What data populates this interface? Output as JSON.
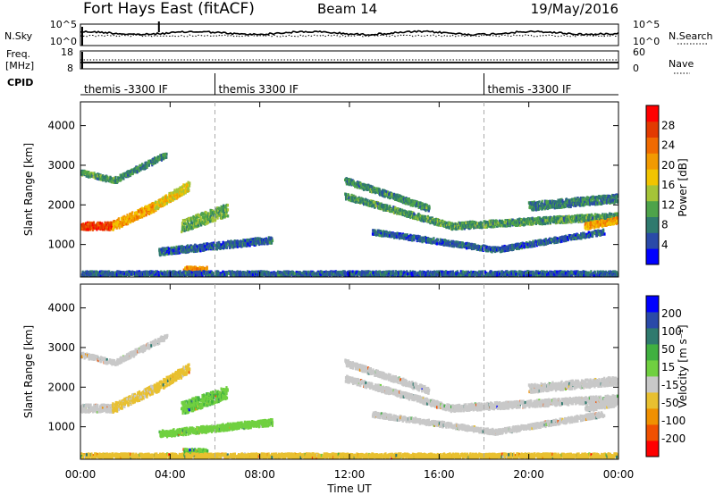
{
  "header": {
    "radar": "Fort Hays East (fitACF)",
    "beam": "Beam 14",
    "date": "19/May/2016"
  },
  "nsky_panel": {
    "left_label": "N.Sky",
    "right_label": "N.Search",
    "left_ticks": [
      "10^5",
      "10^0"
    ],
    "right_ticks": [
      "10^5",
      "10^0"
    ]
  },
  "freq_panel": {
    "left_label_top": "Freq.",
    "left_label_bottom": "[MHz]",
    "right_label": "Nave",
    "left_ticks": [
      "18",
      "8"
    ],
    "right_ticks": [
      "60",
      "0"
    ]
  },
  "cpid": {
    "label": "CPID",
    "segments": [
      {
        "label": "themis -3300 IF",
        "start_hour": 0
      },
      {
        "label": "themis 3300 IF",
        "start_hour": 6
      },
      {
        "label": "themis -3300 IF",
        "start_hour": 18
      }
    ]
  },
  "time_axis": {
    "label": "Time UT",
    "ticks": [
      "00:00",
      "04:00",
      "08:00",
      "12:00",
      "16:00",
      "20:00",
      "00:00"
    ]
  },
  "range_axis": {
    "label": "Slant Range [km]",
    "ticks": [
      "1000",
      "2000",
      "3000",
      "4000"
    ]
  },
  "colors": {
    "power_scale": [
      "#0000ff",
      "#2a4aa8",
      "#2f7a6e",
      "#4ea34a",
      "#a5c438",
      "#f2c400",
      "#f29a00",
      "#f06a00",
      "#e23a00",
      "#ff0000"
    ],
    "velocity_scale": [
      "#ff0000",
      "#f05000",
      "#f09000",
      "#e8c030",
      "#c8c8c8",
      "#70d040",
      "#40b040",
      "#2f7a6e",
      "#2a4aa8",
      "#0000ff"
    ]
  },
  "power_colorbar": {
    "label": "Power [dB]",
    "ticks": [
      "28",
      "24",
      "20",
      "16",
      "12",
      "8",
      "4"
    ]
  },
  "velocity_colorbar": {
    "label": "Velocity [m s⁻¹]",
    "ticks": [
      "200",
      "100",
      "50",
      "15",
      "-15",
      "-50",
      "-100",
      "-200"
    ]
  },
  "chart_data": {
    "type": "heatmap",
    "x_range_hours": [
      0,
      24
    ],
    "y_range_km": [
      180,
      4600
    ],
    "dashed_time_markers_hours": [
      6,
      18
    ],
    "panels": [
      {
        "name": "power",
        "unit": "dB",
        "range": [
          0,
          32
        ],
        "echo_regions": [
          {
            "t_start": 0.0,
            "t_end": 1.4,
            "r_start": 1500,
            "r_end": 1500,
            "width_km": 180,
            "value": 27
          },
          {
            "t_start": 1.4,
            "t_end": 3.3,
            "r_start": 1500,
            "r_end": 2000,
            "width_km": 220,
            "value": 20
          },
          {
            "t_start": 3.3,
            "t_end": 4.8,
            "r_start": 2000,
            "r_end": 2500,
            "width_km": 220,
            "value": 17
          },
          {
            "t_start": 0.0,
            "t_end": 1.5,
            "r_start": 2850,
            "r_end": 2650,
            "width_km": 120,
            "value": 10
          },
          {
            "t_start": 1.5,
            "t_end": 3.8,
            "r_start": 2650,
            "r_end": 3300,
            "width_km": 130,
            "value": 9
          },
          {
            "t_start": 4.5,
            "t_end": 6.5,
            "r_start": 1500,
            "r_end": 1900,
            "width_km": 300,
            "value": 12
          },
          {
            "t_start": 3.5,
            "t_end": 8.5,
            "r_start": 850,
            "r_end": 1150,
            "width_km": 160,
            "value": 6
          },
          {
            "t_start": 4.6,
            "t_end": 5.6,
            "r_start": 420,
            "r_end": 420,
            "width_km": 100,
            "value": 21
          },
          {
            "t_start": 11.8,
            "t_end": 15.5,
            "r_start": 2650,
            "r_end": 1950,
            "width_km": 140,
            "value": 9
          },
          {
            "t_start": 11.8,
            "t_end": 16.5,
            "r_start": 2250,
            "r_end": 1500,
            "width_km": 140,
            "value": 10
          },
          {
            "t_start": 13.0,
            "t_end": 18.5,
            "r_start": 1350,
            "r_end": 900,
            "width_km": 120,
            "value": 6
          },
          {
            "t_start": 18.5,
            "t_end": 23.3,
            "r_start": 900,
            "r_end": 1350,
            "width_km": 120,
            "value": 6
          },
          {
            "t_start": 16.5,
            "t_end": 24.0,
            "r_start": 1500,
            "r_end": 1750,
            "width_km": 160,
            "value": 10
          },
          {
            "t_start": 20.0,
            "t_end": 24.0,
            "r_start": 2000,
            "r_end": 2200,
            "width_km": 200,
            "value": 8
          },
          {
            "t_start": 22.5,
            "t_end": 24.0,
            "r_start": 1500,
            "r_end": 1650,
            "width_km": 150,
            "value": 20
          },
          {
            "t_start": 0.0,
            "t_end": 24.0,
            "r_start": 300,
            "r_end": 300,
            "width_km": 110,
            "value": 6
          }
        ]
      },
      {
        "name": "velocity",
        "unit": "m s-1",
        "range": [
          -250,
          250
        ],
        "echo_regions": [
          {
            "t_start": 0.0,
            "t_end": 1.4,
            "r_start": 1500,
            "r_end": 1500,
            "width_km": 180,
            "value": 0
          },
          {
            "t_start": 1.4,
            "t_end": 3.3,
            "r_start": 1500,
            "r_end": 2000,
            "width_km": 220,
            "value": -25
          },
          {
            "t_start": 3.3,
            "t_end": 4.8,
            "r_start": 2000,
            "r_end": 2500,
            "width_km": 220,
            "value": -30
          },
          {
            "t_start": 0.0,
            "t_end": 1.5,
            "r_start": 2850,
            "r_end": 2650,
            "width_km": 120,
            "value": 0
          },
          {
            "t_start": 1.5,
            "t_end": 3.8,
            "r_start": 2650,
            "r_end": 3300,
            "width_km": 130,
            "value": 0
          },
          {
            "t_start": 4.5,
            "t_end": 6.5,
            "r_start": 1500,
            "r_end": 1900,
            "width_km": 300,
            "value": 40
          },
          {
            "t_start": 3.5,
            "t_end": 8.5,
            "r_start": 850,
            "r_end": 1150,
            "width_km": 160,
            "value": 30
          },
          {
            "t_start": 4.6,
            "t_end": 5.6,
            "r_start": 420,
            "r_end": 420,
            "width_km": 100,
            "value": 40
          },
          {
            "t_start": 11.8,
            "t_end": 15.5,
            "r_start": 2650,
            "r_end": 1950,
            "width_km": 140,
            "value": 0
          },
          {
            "t_start": 11.8,
            "t_end": 16.5,
            "r_start": 2250,
            "r_end": 1500,
            "width_km": 140,
            "value": 0
          },
          {
            "t_start": 13.0,
            "t_end": 18.5,
            "r_start": 1350,
            "r_end": 900,
            "width_km": 120,
            "value": 0
          },
          {
            "t_start": 18.5,
            "t_end": 23.3,
            "r_start": 900,
            "r_end": 1350,
            "width_km": 120,
            "value": 0
          },
          {
            "t_start": 16.5,
            "t_end": 24.0,
            "r_start": 1500,
            "r_end": 1750,
            "width_km": 160,
            "value": 0
          },
          {
            "t_start": 20.0,
            "t_end": 24.0,
            "r_start": 2000,
            "r_end": 2200,
            "width_km": 200,
            "value": 0
          },
          {
            "t_start": 22.5,
            "t_end": 24.0,
            "r_start": 1500,
            "r_end": 1650,
            "width_km": 150,
            "value": 0
          },
          {
            "t_start": 0.0,
            "t_end": 24.0,
            "r_start": 300,
            "r_end": 300,
            "width_km": 110,
            "value": -30
          }
        ]
      }
    ]
  }
}
